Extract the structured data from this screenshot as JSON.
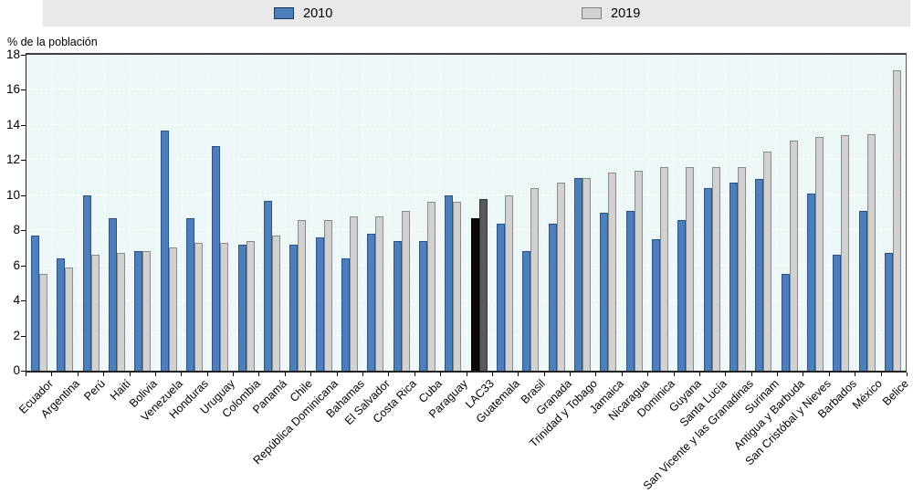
{
  "y_axis_title": "% de la población",
  "chart_data": {
    "type": "bar",
    "title": "",
    "xlabel": "",
    "ylabel": "% de la población",
    "ylim": [
      0,
      18
    ],
    "ytick_step": 2,
    "grid": "white-dashed",
    "legend_position": "top",
    "categories": [
      "Ecuador",
      "Argentina",
      "Perú",
      "Haití",
      "Bolivia",
      "Venezuela",
      "Honduras",
      "Uruguay",
      "Colombia",
      "Panamá",
      "Chile",
      "República Dominicana",
      "Bahamas",
      "El Salvador",
      "Costa Rica",
      "Cuba",
      "Paraguay",
      "LAC33",
      "Guatemala",
      "Brasil",
      "Granada",
      "Trinidad y Tobago",
      "Jamaica",
      "Nicaragua",
      "Dominica",
      "Guyana",
      "Santa Lucía",
      "San Vicente y las Granadinas",
      "Surinam",
      "Antigua y Barbuda",
      "San Cristóbal y Nieves",
      "Barbados",
      "México",
      "Belice"
    ],
    "series": [
      {
        "name": "2010",
        "color": "#4d80ba",
        "border": "#2a5288",
        "values": [
          7.7,
          6.4,
          10.0,
          8.7,
          6.8,
          13.7,
          8.7,
          12.8,
          7.2,
          9.7,
          7.2,
          7.6,
          6.4,
          7.8,
          7.4,
          7.4,
          10.0,
          8.7,
          8.4,
          6.8,
          8.4,
          11.0,
          9.0,
          9.1,
          7.5,
          8.6,
          10.4,
          10.7,
          10.9,
          5.5,
          10.1,
          6.6,
          9.1,
          6.7
        ]
      },
      {
        "name": "2019",
        "color": "#d1d1d1",
        "border": "#8a8a8a",
        "values": [
          5.5,
          5.9,
          6.6,
          6.7,
          6.8,
          7.0,
          7.3,
          7.3,
          7.4,
          7.7,
          8.6,
          8.6,
          8.8,
          8.8,
          9.1,
          9.6,
          9.6,
          9.8,
          10.0,
          10.4,
          10.7,
          11.0,
          11.3,
          11.4,
          11.6,
          11.6,
          11.6,
          11.6,
          12.5,
          13.1,
          13.3,
          13.4,
          13.5,
          17.1
        ]
      }
    ],
    "highlight": {
      "category": "LAC33",
      "colors": {
        "2010": "#0a0a0a",
        "2019": "#595959"
      },
      "borders": {
        "2010": "#000000",
        "2019": "#333333"
      }
    }
  }
}
